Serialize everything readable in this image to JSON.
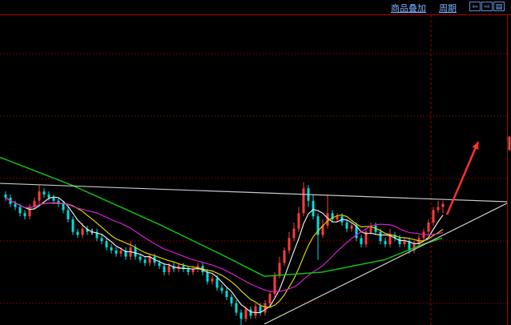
{
  "toolbar": {
    "overlay_label": "商品叠加",
    "period_label": "周期",
    "buttons": [
      {
        "icon": "arrow-left-icon",
        "glyph": "⇦"
      },
      {
        "icon": "arrow-right-icon",
        "glyph": "⇨"
      },
      {
        "icon": "layout-icon",
        "glyph": "▤"
      }
    ]
  },
  "colors": {
    "up": "#ff3c3c",
    "down": "#00dcdc",
    "flat": "#ffffff",
    "ma5": "#e8e8e8",
    "ma10": "#e0d000",
    "ma20": "#d020d0",
    "ma_long": "#10c010",
    "trendline": "#c8c8c8",
    "arrow": "#ff3030",
    "grid": "#7a0000"
  },
  "chart_data": {
    "type": "candlestick",
    "title": "",
    "xlabel": "",
    "ylabel": "",
    "ylim": [
      0,
      100
    ],
    "grid": true,
    "candles_ohlc": [
      [
        42,
        43,
        40,
        41
      ],
      [
        41,
        42,
        38,
        39
      ],
      [
        39,
        40,
        37,
        38
      ],
      [
        38,
        39,
        35,
        36
      ],
      [
        36,
        37,
        34,
        35
      ],
      [
        35,
        39,
        34,
        38
      ],
      [
        38,
        41,
        37,
        40
      ],
      [
        40,
        45,
        39,
        43
      ],
      [
        43,
        44,
        41,
        42
      ],
      [
        42,
        43,
        40,
        41
      ],
      [
        41,
        42,
        39,
        40
      ],
      [
        40,
        41,
        38,
        39
      ],
      [
        39,
        40,
        36,
        37
      ],
      [
        37,
        38,
        33,
        34
      ],
      [
        34,
        35,
        29,
        30
      ],
      [
        30,
        31,
        28,
        29
      ],
      [
        29,
        33,
        28,
        31
      ],
      [
        31,
        32,
        29,
        30
      ],
      [
        30,
        31,
        29,
        30
      ],
      [
        30,
        31,
        27,
        28
      ],
      [
        28,
        29,
        26,
        27
      ],
      [
        27,
        28,
        24,
        25
      ],
      [
        25,
        26,
        23,
        24
      ],
      [
        24,
        25,
        22,
        23
      ],
      [
        23,
        25,
        22,
        24
      ],
      [
        24,
        25,
        21,
        22
      ],
      [
        22,
        27,
        21,
        25
      ],
      [
        25,
        26,
        21,
        22
      ],
      [
        22,
        23,
        20,
        21
      ],
      [
        21,
        22,
        19,
        20
      ],
      [
        20,
        23,
        19,
        22
      ],
      [
        22,
        23,
        19,
        20
      ],
      [
        20,
        21,
        18,
        19
      ],
      [
        19,
        20,
        16,
        17
      ],
      [
        17,
        20,
        16,
        19
      ],
      [
        19,
        20,
        17,
        18
      ],
      [
        18,
        20,
        17,
        19
      ],
      [
        19,
        20,
        17,
        18
      ],
      [
        18,
        19,
        16,
        17
      ],
      [
        17,
        19,
        16,
        18
      ],
      [
        18,
        20,
        17,
        19
      ],
      [
        19,
        20,
        16,
        17
      ],
      [
        17,
        18,
        13,
        14
      ],
      [
        14,
        16,
        13,
        15
      ],
      [
        15,
        16,
        11,
        12
      ],
      [
        12,
        13,
        10,
        11
      ],
      [
        11,
        12,
        8,
        9
      ],
      [
        9,
        10,
        6,
        7
      ],
      [
        7,
        8,
        3,
        4
      ],
      [
        4,
        5,
        0,
        2
      ],
      [
        2,
        6,
        1,
        5
      ],
      [
        5,
        6,
        2,
        3
      ],
      [
        3,
        7,
        2,
        6
      ],
      [
        6,
        7,
        3,
        4
      ],
      [
        4,
        8,
        3,
        7
      ],
      [
        7,
        11,
        6,
        10
      ],
      [
        10,
        17,
        9,
        16
      ],
      [
        16,
        22,
        15,
        20
      ],
      [
        20,
        25,
        19,
        24
      ],
      [
        24,
        30,
        23,
        28
      ],
      [
        28,
        33,
        27,
        31
      ],
      [
        31,
        38,
        30,
        36
      ],
      [
        36,
        46,
        35,
        44
      ],
      [
        44,
        45,
        38,
        40
      ],
      [
        40,
        42,
        34,
        35
      ],
      [
        35,
        36,
        21,
        29
      ],
      [
        29,
        34,
        28,
        32
      ],
      [
        32,
        42,
        31,
        36
      ],
      [
        36,
        37,
        33,
        34
      ],
      [
        34,
        36,
        33,
        35
      ],
      [
        35,
        36,
        32,
        33
      ],
      [
        33,
        34,
        30,
        31
      ],
      [
        31,
        33,
        30,
        32
      ],
      [
        32,
        33,
        27,
        28
      ],
      [
        28,
        29,
        25,
        26
      ],
      [
        26,
        31,
        25,
        30
      ],
      [
        30,
        33,
        29,
        32
      ],
      [
        32,
        33,
        29,
        30
      ],
      [
        30,
        31,
        26,
        27
      ],
      [
        27,
        28,
        25,
        26
      ],
      [
        26,
        31,
        25,
        29
      ],
      [
        29,
        30,
        27,
        28
      ],
      [
        28,
        29,
        25,
        26
      ],
      [
        26,
        28,
        25,
        27
      ],
      [
        27,
        28,
        23,
        24
      ],
      [
        24,
        27,
        23,
        26
      ],
      [
        26,
        29,
        25,
        28
      ],
      [
        28,
        31,
        27,
        30
      ],
      [
        30,
        34,
        29,
        33
      ],
      [
        33,
        38,
        32,
        37
      ],
      [
        37,
        40,
        36,
        38
      ],
      [
        38,
        40,
        36,
        39
      ]
    ],
    "moving_averages": [
      {
        "period": 5,
        "color_key": "ma5"
      },
      {
        "period": 10,
        "color_key": "ma10"
      },
      {
        "period": 20,
        "color_key": "ma20"
      }
    ],
    "long_ma_points": [
      [
        -1,
        54
      ],
      [
        14,
        45
      ],
      [
        32,
        32.5
      ],
      [
        46,
        22
      ],
      [
        54,
        15.7
      ],
      [
        66,
        17
      ],
      [
        79,
        21
      ],
      [
        87,
        26
      ],
      [
        91,
        28
      ]
    ],
    "trendlines": [
      {
        "from": [
          -1,
          45.6
        ],
        "to": [
          104.5,
          39.7
        ]
      },
      {
        "from": [
          54,
          0.3
        ],
        "to": [
          104.5,
          39.2
        ]
      }
    ],
    "arrow": {
      "from": [
        92,
        35.5
      ],
      "to": [
        98.5,
        59
      ]
    }
  }
}
